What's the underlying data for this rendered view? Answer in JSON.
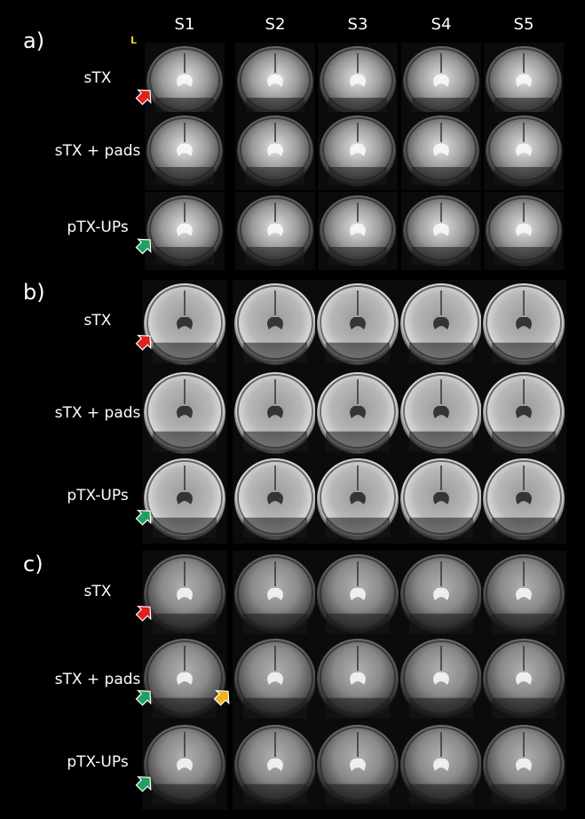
{
  "header": {
    "columns": [
      "S1",
      "S2",
      "S3",
      "S4",
      "S5"
    ],
    "orientation_marker": "L"
  },
  "panels": [
    {
      "label": "a)",
      "rows": [
        "sTX",
        "sTX + pads",
        "pTX-UPs"
      ]
    },
    {
      "label": "b)",
      "rows": [
        "sTX",
        "sTX + pads",
        "pTX-UPs"
      ]
    },
    {
      "label": "c)",
      "rows": [
        "sTX",
        "sTX + pads",
        "pTX-UPs"
      ]
    }
  ]
}
